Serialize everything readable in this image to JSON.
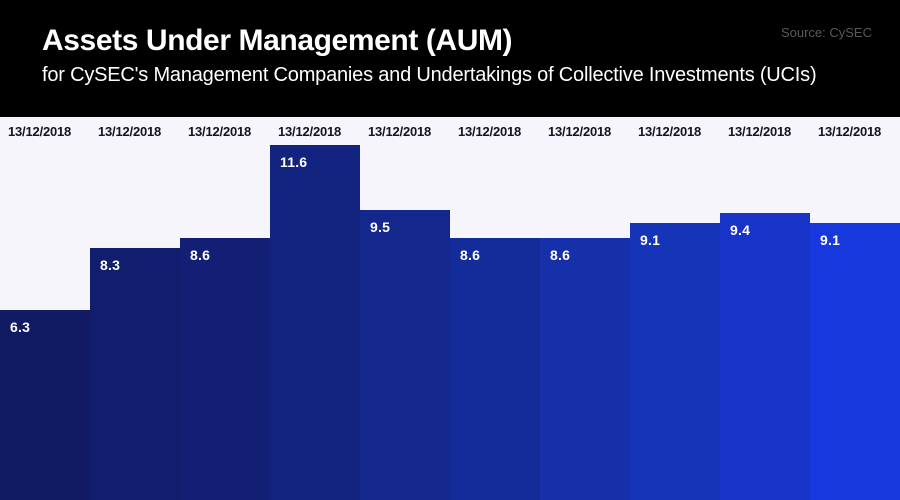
{
  "header": {
    "title": "Assets Under Management (AUM)",
    "subtitle": "for CySEC's Management Companies and Undertakings of Collective Investments (UCIs)",
    "source": "Source: CySEC"
  },
  "colors": {
    "header_bg": "#000000",
    "header_text": "#ffffff",
    "source_text": "#595959",
    "plot_bg": "#f5f5fb",
    "date_text": "#14141e",
    "value_text": "#ffffff",
    "bar_palette": [
      "#101b63",
      "#101e6d",
      "#121f75",
      "#122380",
      "#13278d",
      "#142b9a",
      "#1530a9",
      "#1634b8",
      "#1733c8",
      "#1638dd"
    ]
  },
  "chart_data": {
    "type": "bar",
    "title": "Assets Under Management (AUM)",
    "subtitle": "for CySEC's Management Companies and Undertakings of Collective Investments (UCIs)",
    "source": "Source: CySEC",
    "categories": [
      "13/12/2018",
      "13/12/2018",
      "13/12/2018",
      "13/12/2018",
      "13/12/2018",
      "13/12/2018",
      "13/12/2018",
      "13/12/2018",
      "13/12/2018",
      "13/12/2018"
    ],
    "values": [
      6.3,
      8.3,
      8.6,
      11.6,
      9.5,
      8.6,
      8.6,
      9.1,
      9.4,
      9.1
    ],
    "value_labels_shown": true,
    "xlabel": "",
    "ylabel": "",
    "ylim": [
      0,
      12.5
    ],
    "grid": false,
    "legend": "none",
    "bars_cropped_at_bottom": true
  }
}
